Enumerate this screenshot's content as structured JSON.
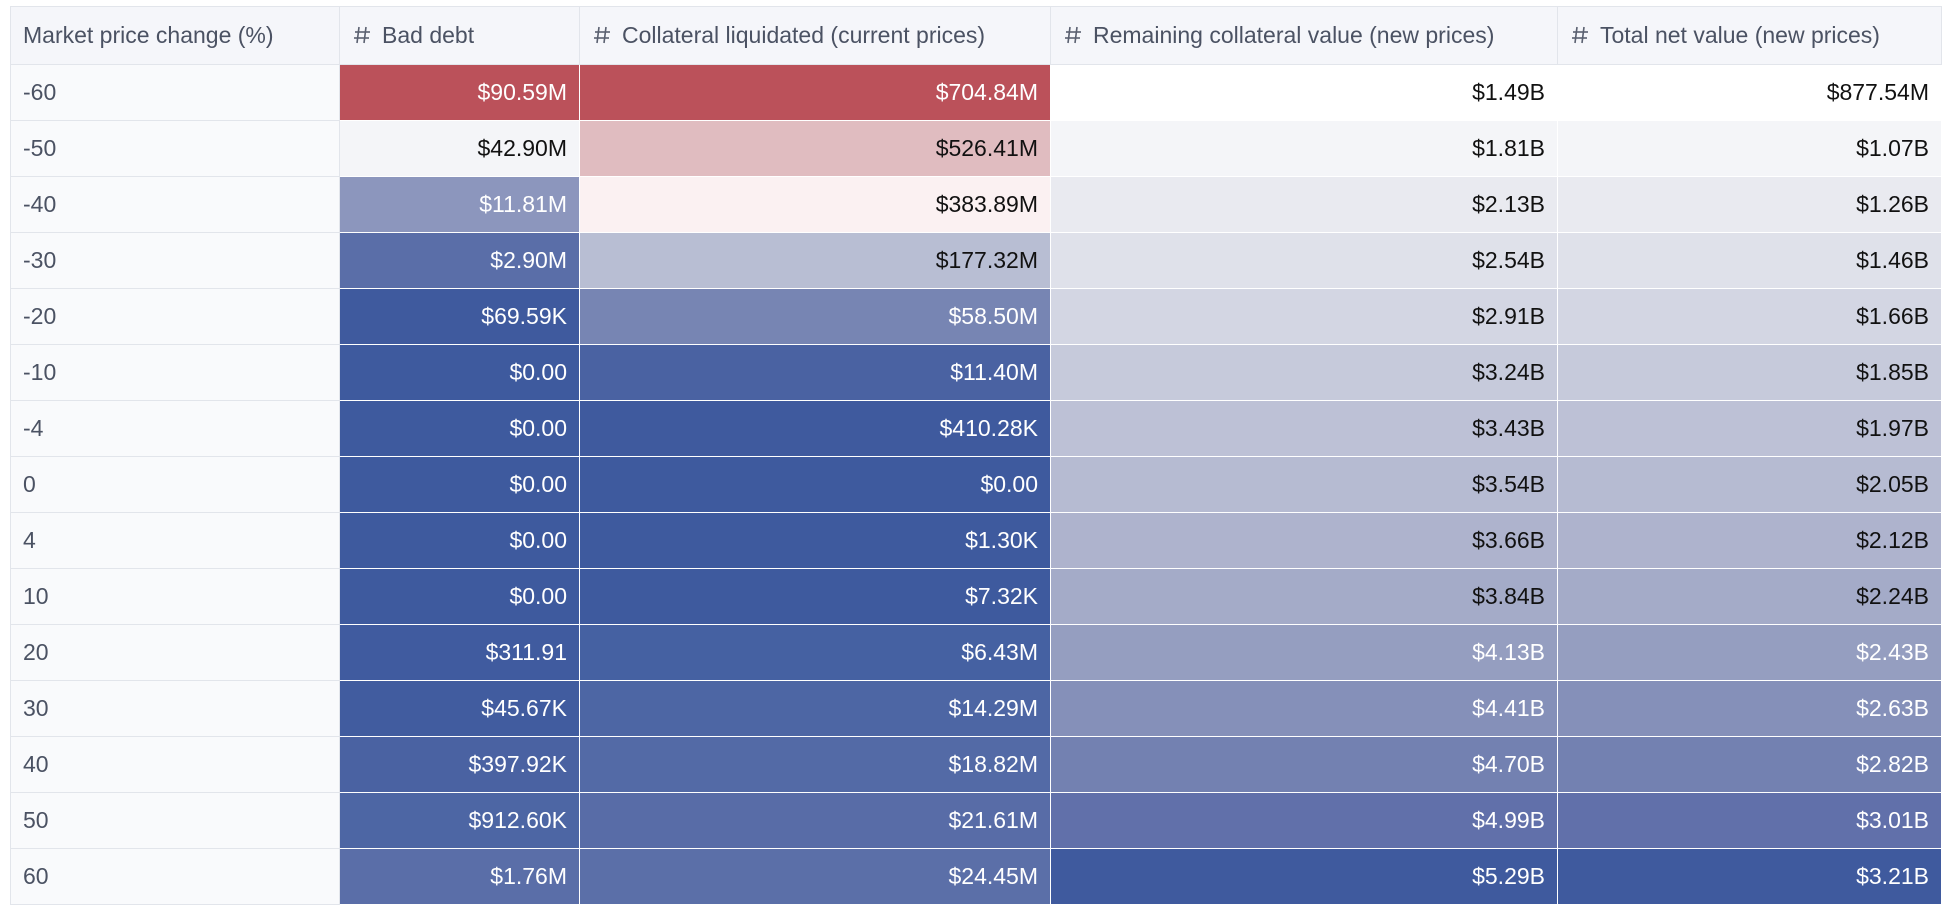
{
  "table": {
    "header": [
      "Market price change (%)",
      "Bad debt",
      "Collateral liquidated (current prices)",
      "Remaining collateral value (new prices)",
      "Total net value (new prices)"
    ],
    "rows": [
      [
        "-60",
        "$90.59M",
        "$704.84M",
        "$1.49B",
        "$877.54M"
      ],
      [
        "-50",
        "$42.90M",
        "$526.41M",
        "$1.81B",
        "$1.07B"
      ],
      [
        "-40",
        "$11.81M",
        "$383.89M",
        "$2.13B",
        "$1.26B"
      ],
      [
        "-30",
        "$2.90M",
        "$177.32M",
        "$2.54B",
        "$1.46B"
      ],
      [
        "-20",
        "$69.59K",
        "$58.50M",
        "$2.91B",
        "$1.66B"
      ],
      [
        "-10",
        "$0.00",
        "$11.40M",
        "$3.24B",
        "$1.85B"
      ],
      [
        "-4",
        "$0.00",
        "$410.28K",
        "$3.43B",
        "$1.97B"
      ],
      [
        "0",
        "$0.00",
        "$0.00",
        "$3.54B",
        "$2.05B"
      ],
      [
        "4",
        "$0.00",
        "$1.30K",
        "$3.66B",
        "$2.12B"
      ],
      [
        "10",
        "$0.00",
        "$7.32K",
        "$3.84B",
        "$2.24B"
      ],
      [
        "20",
        "$311.91",
        "$6.43M",
        "$4.13B",
        "$2.43B"
      ],
      [
        "30",
        "$45.67K",
        "$14.29M",
        "$4.41B",
        "$2.63B"
      ],
      [
        "40",
        "$397.92K",
        "$18.82M",
        "$4.70B",
        "$2.82B"
      ],
      [
        "50",
        "$912.60K",
        "$21.61M",
        "$4.99B",
        "$3.01B"
      ],
      [
        "60",
        "$1.76M",
        "$24.45M",
        "$5.29B",
        "$3.21B"
      ]
    ],
    "cell_colors": [
      [
        null,
        "#bb515a",
        "#bb515a",
        "#ffffff",
        "#ffffff"
      ],
      [
        null,
        "#f4f5f8",
        "#e0bcc0",
        "#f4f5f8",
        "#f4f5f8"
      ],
      [
        null,
        "#8c96bd",
        "#fbf1f2",
        "#e9eaf0",
        "#e9eaf0"
      ],
      [
        null,
        "#5a6ea8",
        "#b8bed3",
        "#dfe1ea",
        "#dfe1ea"
      ],
      [
        null,
        "#3f5a9e",
        "#7785b3",
        "#d3d6e3",
        "#d3d6e3"
      ],
      [
        null,
        "#3e5a9e",
        "#4a62a2",
        "#c6cadb",
        "#c6cadb"
      ],
      [
        null,
        "#3e5a9e",
        "#3f5a9e",
        "#bdc1d6",
        "#bdc1d6"
      ],
      [
        null,
        "#3e5a9e",
        "#3e5a9e",
        "#b6bbd2",
        "#b6bbd2"
      ],
      [
        null,
        "#3e5a9e",
        "#3e5a9e",
        "#aeb3cd",
        "#aeb3cd"
      ],
      [
        null,
        "#3e5a9e",
        "#3e5a9e",
        "#a4abc8",
        "#a4abc8"
      ],
      [
        null,
        "#405b9f",
        "#4561a2",
        "#959ec0",
        "#959ec0"
      ],
      [
        null,
        "#415c9f",
        "#4d66a4",
        "#8590b9",
        "#8590b9"
      ],
      [
        null,
        "#4a62a2",
        "#536aa6",
        "#7381b1",
        "#7381b1"
      ],
      [
        null,
        "#4d66a4",
        "#586ca7",
        "#6170aa",
        "#6170aa"
      ],
      [
        null,
        "#5a6ea8",
        "#5b6fa8",
        "#3f5a9e",
        "#3f5a9e"
      ]
    ]
  }
}
